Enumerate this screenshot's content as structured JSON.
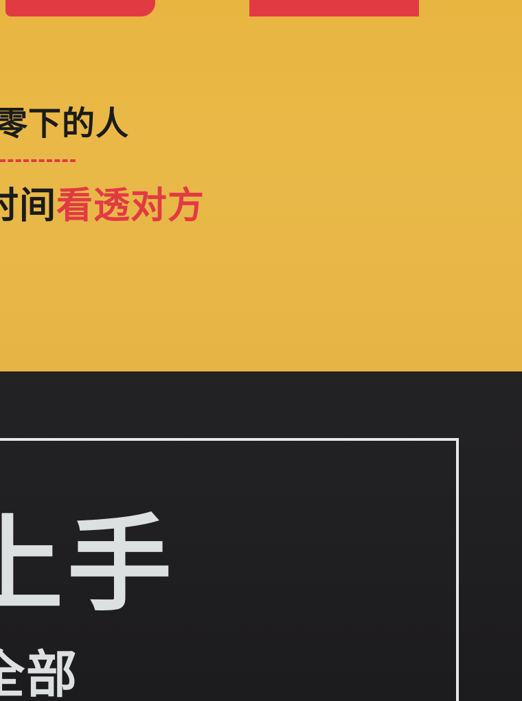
{
  "cover": {
    "tagline_1": "零下的人",
    "tagline_2_black": "时间",
    "tagline_2_red": "看透对方",
    "title_line": "上手",
    "subtitle_line": "全部"
  },
  "colors": {
    "yellow": "#e8b540",
    "red": "#e23a43",
    "black": "#1e1d1f",
    "white_text": "#dde0e1"
  }
}
